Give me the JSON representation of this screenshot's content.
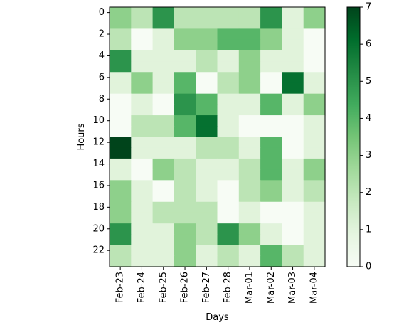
{
  "chart_data": {
    "type": "heatmap",
    "title": "",
    "xlabel": "Days",
    "ylabel": "Hours",
    "x_categories": [
      "Feb-23",
      "Feb-24",
      "Feb-25",
      "Feb-26",
      "Feb-27",
      "Feb-28",
      "Mar-01",
      "Mar-02",
      "Mar-03",
      "Mar-04"
    ],
    "y_categories": [
      0,
      1,
      2,
      3,
      4,
      5,
      6,
      7,
      8,
      9,
      10,
      11,
      12,
      13,
      14,
      15,
      16,
      17,
      18,
      19,
      20,
      21,
      22,
      23
    ],
    "y_tick_labels": [
      "0",
      "2",
      "4",
      "6",
      "8",
      "10",
      "12",
      "14",
      "16",
      "18",
      "20",
      "22"
    ],
    "values": [
      [
        3,
        2,
        5,
        2,
        2,
        2,
        2,
        5,
        1,
        3
      ],
      [
        3,
        2,
        5,
        2,
        2,
        2,
        2,
        5,
        1,
        3
      ],
      [
        2,
        0,
        1,
        3,
        3,
        4,
        4,
        3,
        1,
        0
      ],
      [
        2,
        0,
        1,
        3,
        3,
        4,
        4,
        3,
        1,
        0
      ],
      [
        5,
        1,
        1,
        1,
        2,
        1,
        3,
        1,
        1,
        0
      ],
      [
        5,
        1,
        1,
        1,
        2,
        1,
        3,
        1,
        1,
        0
      ],
      [
        1,
        3,
        1,
        4,
        0,
        2,
        3,
        0,
        6,
        1
      ],
      [
        1,
        3,
        1,
        4,
        0,
        2,
        3,
        0,
        6,
        1
      ],
      [
        0,
        1,
        0,
        5,
        4,
        1,
        1,
        4,
        1,
        3
      ],
      [
        0,
        1,
        0,
        5,
        4,
        1,
        1,
        4,
        1,
        3
      ],
      [
        0,
        2,
        2,
        4,
        6,
        1,
        0,
        0,
        0,
        1
      ],
      [
        0,
        2,
        2,
        4,
        6,
        1,
        0,
        0,
        0,
        1
      ],
      [
        7,
        1,
        1,
        1,
        2,
        2,
        1,
        4,
        0,
        1
      ],
      [
        7,
        1,
        1,
        1,
        2,
        2,
        1,
        4,
        0,
        1
      ],
      [
        1,
        0,
        3,
        2,
        1,
        1,
        2,
        4,
        1,
        3
      ],
      [
        1,
        0,
        3,
        2,
        1,
        1,
        2,
        4,
        1,
        3
      ],
      [
        3,
        1,
        0,
        2,
        1,
        0,
        2,
        3,
        1,
        2
      ],
      [
        3,
        1,
        0,
        2,
        1,
        0,
        2,
        3,
        1,
        2
      ],
      [
        3,
        1,
        2,
        2,
        2,
        0,
        1,
        0,
        0,
        1
      ],
      [
        3,
        1,
        2,
        2,
        2,
        0,
        1,
        0,
        0,
        1
      ],
      [
        5,
        1,
        1,
        3,
        2,
        5,
        3,
        1,
        0,
        1
      ],
      [
        5,
        1,
        1,
        3,
        2,
        5,
        3,
        1,
        0,
        1
      ],
      [
        2,
        1,
        1,
        3,
        1,
        2,
        1,
        4,
        2,
        1
      ],
      [
        2,
        1,
        1,
        3,
        1,
        2,
        1,
        4,
        2,
        1
      ]
    ],
    "colorbar": {
      "min": 0,
      "max": 7,
      "ticks": [
        "0",
        "1",
        "2",
        "3",
        "4",
        "5",
        "6",
        "7"
      ],
      "colormap": [
        "#f7fcf5",
        "#e5f5e0",
        "#c7e9c0",
        "#a1d99b",
        "#74c476",
        "#41ab5d",
        "#238b45",
        "#006d2c",
        "#00441b"
      ]
    },
    "grid": false,
    "legend": "colorbar-right"
  }
}
